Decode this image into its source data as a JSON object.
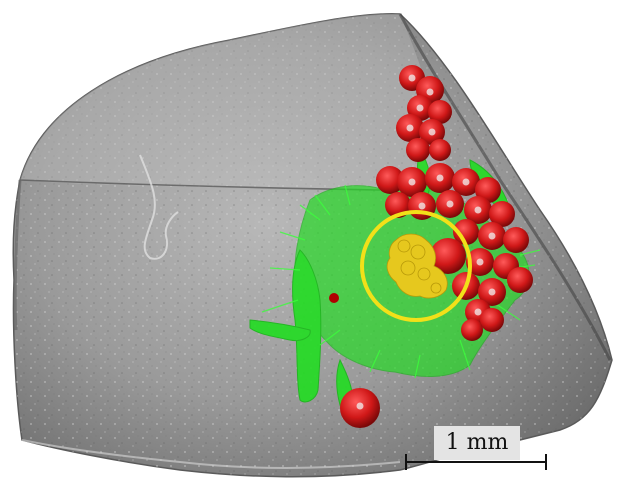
{
  "image": {
    "background_color": "#ffffff",
    "sample_color": "#9a9a9a",
    "vessel_color": "#22dd22",
    "cluster_color": "#e6c81e",
    "marker_color": "#d01818",
    "highlight_circle_color": "#f2e019"
  },
  "scale_bar": {
    "label": "1 mm"
  }
}
